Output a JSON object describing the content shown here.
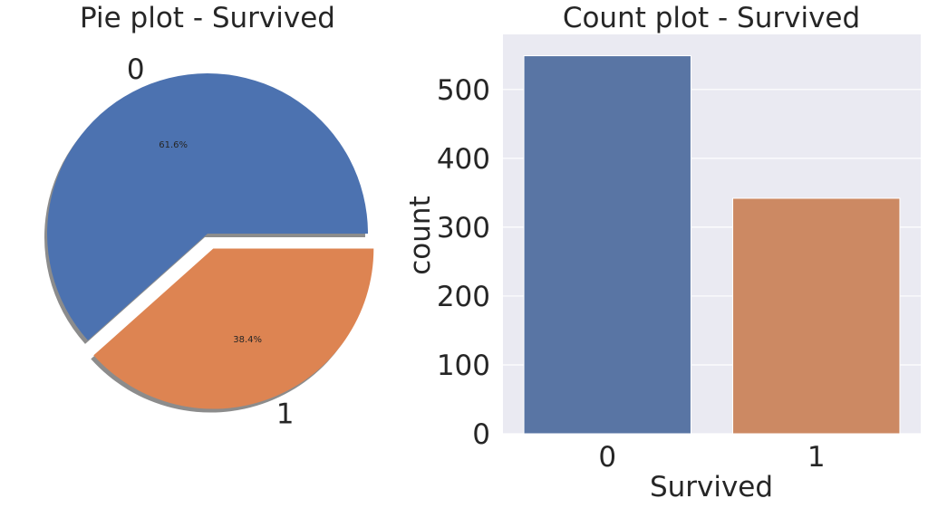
{
  "chart_data": [
    {
      "type": "pie",
      "title": "Pie plot - Survived",
      "labels": [
        "0",
        "1"
      ],
      "values": [
        61.6,
        38.4
      ],
      "pct_labels": [
        "61.6%",
        "38.4%"
      ],
      "explode": [
        0,
        0.1
      ],
      "shadow": true,
      "colors": [
        "#4c72b0",
        "#dd8452"
      ]
    },
    {
      "type": "bar",
      "title": "Count plot - Survived",
      "categories": [
        "0",
        "1"
      ],
      "values": [
        549,
        342
      ],
      "xlabel": "Survived",
      "ylabel": "count",
      "ylim": [
        0,
        580
      ],
      "yticks": [
        0,
        100,
        200,
        300,
        400,
        500
      ],
      "grid": true,
      "colors": [
        "#5975a4",
        "#cc8963"
      ],
      "background": "#eaeaf2"
    }
  ]
}
